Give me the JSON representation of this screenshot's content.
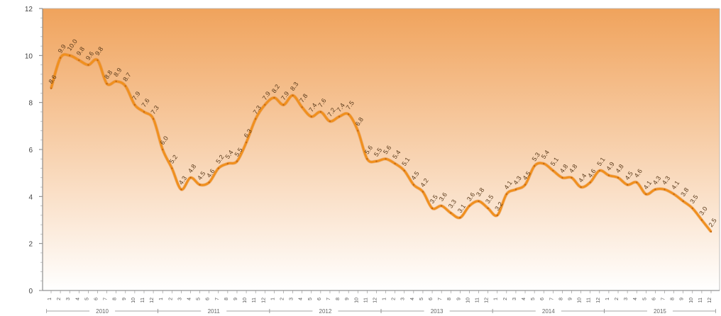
{
  "chart_data": {
    "type": "area",
    "title": "",
    "xlabel": "",
    "ylabel": "",
    "ylim": [
      0,
      12
    ],
    "yticks": [
      0,
      2,
      4,
      6,
      8,
      10,
      12
    ],
    "grid": false,
    "legend": "none",
    "colors": {
      "line": "#f0901e",
      "fill_top": "#f0a35c",
      "fill_bottom": "#ffffff",
      "frame": "#7a7a7a"
    },
    "years": [
      "2010",
      "2011",
      "2012",
      "2013",
      "2014",
      "2015"
    ],
    "months": [
      "1",
      "2",
      "3",
      "4",
      "5",
      "6",
      "7",
      "8",
      "9",
      "10",
      "11",
      "12"
    ],
    "series": [
      {
        "values": [
          8.6,
          9.9,
          10.0,
          9.8,
          9.6,
          9.8,
          8.8,
          8.9,
          8.7,
          7.9,
          7.6,
          7.3,
          6.0,
          5.2,
          4.3,
          4.8,
          4.5,
          4.6,
          5.2,
          5.4,
          5.5,
          6.3,
          7.3,
          7.9,
          8.2,
          7.9,
          8.3,
          7.8,
          7.4,
          7.6,
          7.2,
          7.4,
          7.5,
          6.8,
          5.6,
          5.5,
          5.6,
          5.4,
          5.1,
          4.5,
          4.2,
          3.5,
          3.6,
          3.3,
          3.1,
          3.6,
          3.8,
          3.5,
          3.2,
          4.1,
          4.3,
          4.5,
          5.3,
          5.4,
          5.1,
          4.8,
          4.8,
          4.4,
          4.6,
          5.1,
          4.9,
          4.8,
          4.5,
          4.6,
          4.1,
          4.3,
          4.3,
          4.1,
          3.8,
          3.5,
          3.0,
          2.5
        ]
      }
    ]
  }
}
